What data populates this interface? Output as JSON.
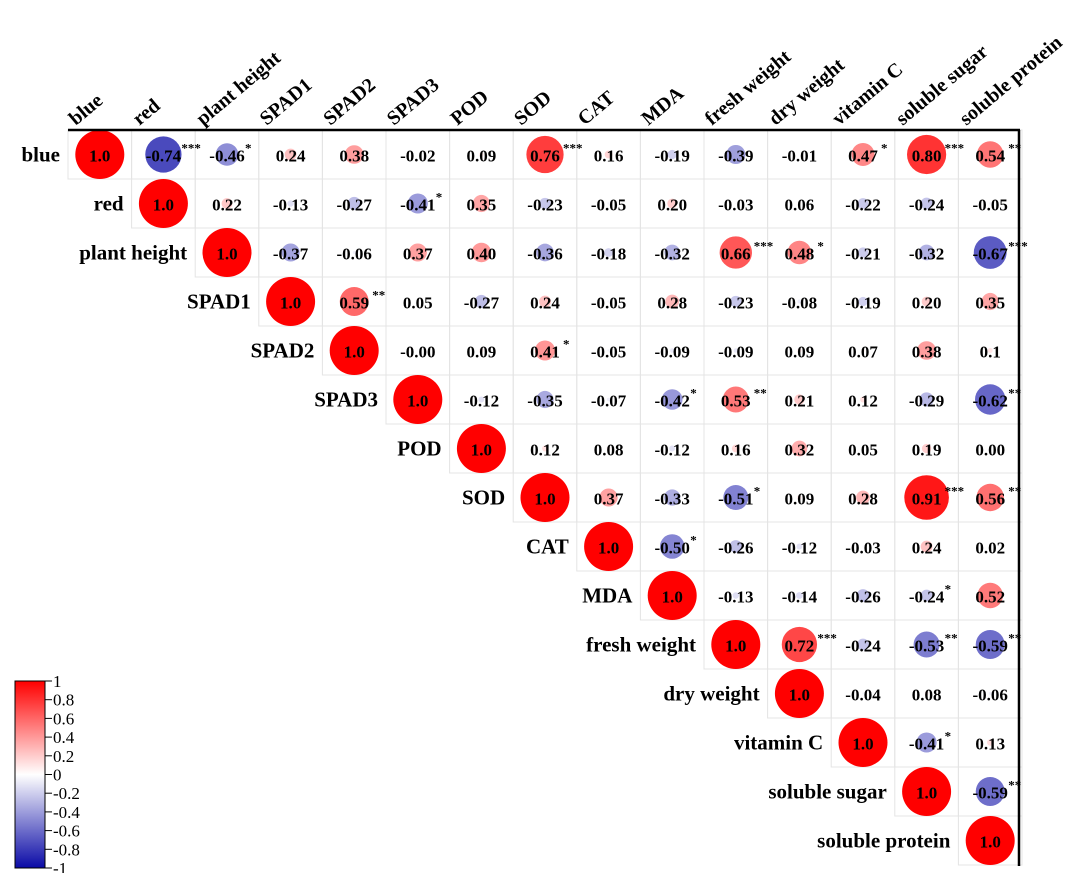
{
  "chart_data": {
    "type": "heatmap",
    "style": "upper-triangle correlation circles",
    "variables": [
      "blue",
      "red",
      "plant height",
      "SPAD1",
      "SPAD2",
      "SPAD3",
      "POD",
      "SOD",
      "CAT",
      "MDA",
      "fresh weight",
      "dry weight",
      "vitamin C",
      "soluble sugar",
      "soluble protein"
    ],
    "matrix": [
      [
        "1.0",
        "-0.74",
        "-0.46",
        "0.24",
        "0.38",
        "-0.02",
        "0.09",
        "0.76",
        "0.16",
        "-0.19",
        "-0.39",
        "-0.01",
        "0.47",
        "0.80",
        "0.54"
      ],
      [
        "1.0",
        "0.22",
        "-0.13",
        "-0.27",
        "-0.41",
        "0.35",
        "-0.23",
        "-0.05",
        "0.20",
        "-0.03",
        "0.06",
        "-0.22",
        "-0.24",
        "-0.05"
      ],
      [
        "1.0",
        "-0.37",
        "-0.06",
        "0.37",
        "0.40",
        "-0.36",
        "-0.18",
        "-0.32",
        "0.66",
        "0.48",
        "-0.21",
        "-0.32",
        "-0.67"
      ],
      [
        "1.0",
        "0.59",
        "0.05",
        "-0.27",
        "0.24",
        "-0.05",
        "0.28",
        "-0.23",
        "-0.08",
        "-0.19",
        "0.20",
        "0.35"
      ],
      [
        "1.0",
        "-0.00",
        "0.09",
        "0.41",
        "-0.05",
        "-0.09",
        "-0.09",
        "0.09",
        "0.07",
        "0.38",
        "0.1"
      ],
      [
        "1.0",
        "-0.12",
        "-0.35",
        "-0.07",
        "-0.42",
        "0.53",
        "0.21",
        "0.12",
        "-0.29",
        "-0.62"
      ],
      [
        "1.0",
        "0.12",
        "0.08",
        "-0.12",
        "0.16",
        "0.32",
        "0.05",
        "0.19",
        "0.00"
      ],
      [
        "1.0",
        "0.37",
        "-0.33",
        "-0.51",
        "0.09",
        "0.28",
        "0.91",
        "0.56"
      ],
      [
        "1.0",
        "-0.50",
        "-0.26",
        "-0.12",
        "-0.03",
        "0.24",
        "0.02"
      ],
      [
        "1.0",
        "-0.13",
        "-0.14",
        "-0.26",
        "-0.24",
        "0.52"
      ],
      [
        "1.0",
        "0.72",
        "-0.24",
        "-0.53",
        "-0.59"
      ],
      [
        "1.0",
        "-0.04",
        "0.08",
        "-0.06"
      ],
      [
        "1.0",
        "-0.41",
        "0.13"
      ],
      [
        "1.0",
        "-0.59"
      ],
      [
        "1.0"
      ]
    ],
    "significance": [
      [
        "",
        "***",
        "*",
        "",
        "",
        "",
        "",
        "***",
        "",
        "",
        "",
        "",
        "*",
        "***",
        "**"
      ],
      [
        "",
        "",
        "",
        "",
        "*",
        "",
        "",
        "",
        "",
        "",
        "",
        "",
        "",
        ""
      ],
      [
        "",
        "",
        "",
        "",
        "",
        "",
        "",
        "",
        "***",
        "*",
        "",
        "",
        "***"
      ],
      [
        "",
        "**",
        "",
        "",
        "",
        "",
        "",
        "",
        "",
        "",
        "",
        ""
      ],
      [
        "",
        "",
        "",
        "*",
        "",
        "",
        "",
        "",
        "",
        "",
        ""
      ],
      [
        "",
        "",
        "",
        "",
        "*",
        "**",
        "",
        "",
        "",
        "**"
      ],
      [
        "",
        "",
        "",
        "",
        "",
        "",
        "",
        "",
        ""
      ],
      [
        "",
        "",
        "",
        "*",
        "",
        "",
        "***",
        "**"
      ],
      [
        "",
        "*",
        "",
        "",
        "",
        "",
        ""
      ],
      [
        "",
        "",
        "",
        "",
        "*"
      ],
      [
        "",
        "***",
        "",
        "**",
        "**"
      ],
      [
        "",
        "",
        "",
        ""
      ],
      [
        "",
        "*",
        ""
      ],
      [
        "",
        "**"
      ],
      [
        ""
      ]
    ],
    "colorbar": {
      "range": [
        -1,
        1
      ],
      "ticks": [
        "1",
        "0.8",
        "0.6",
        "0.4",
        "0.2",
        "0",
        "-0.2",
        "-0.4",
        "-0.6",
        "-0.8",
        "-1"
      ],
      "negative_color": "#0a0aa6",
      "zero_color": "#ffffff",
      "positive_color": "#ff0000"
    }
  }
}
